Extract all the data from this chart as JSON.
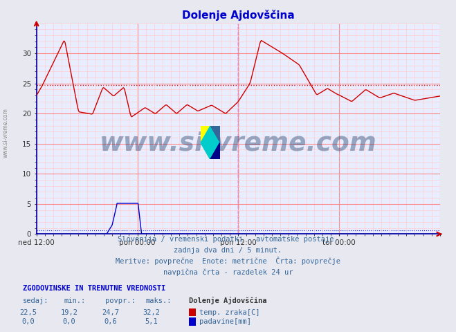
{
  "title": "Dolenje Ajdovščina",
  "title_color": "#0000cc",
  "bg_color": "#e8e8f0",
  "plot_bg_color": "#e8eeff",
  "grid_color_major": "#ffaaaa",
  "grid_color_minor": "#ffd0d0",
  "xlim": [
    0,
    576
  ],
  "ylim": [
    0,
    35
  ],
  "yticks": [
    0,
    5,
    10,
    15,
    20,
    25,
    30
  ],
  "xtick_labels": [
    "ned 12:00",
    "pon 00:00",
    "pon 12:00",
    "tor 00:00"
  ],
  "xtick_positions": [
    0,
    144,
    288,
    432
  ],
  "hline_red_y": 24.7,
  "hline_blue_y": 0.6,
  "vline_x": 288,
  "temp_color": "#cc0000",
  "precip_color": "#0000cc",
  "watermark_text": "www.si-vreme.com",
  "watermark_color": "#1a3a6a",
  "watermark_alpha": 0.4,
  "info_line1": "Slovenija / vremenski podatki - avtomatske postaje.",
  "info_line2": "zadnja dva dni / 5 minut.",
  "info_line3": "Meritve: povprečne  Enote: metrične  Črta: povprečje",
  "info_line4": "navpična črta - razdelek 24 ur",
  "table_header": "ZGODOVINSKE IN TRENUTNE VREDNOSTI",
  "col_headers": [
    "sedaj:",
    "min.:",
    "povpr.:",
    "maks.:"
  ],
  "station_name": "Dolenje Ajdovščina",
  "row1_values": [
    "22,5",
    "19,2",
    "24,7",
    "32,2"
  ],
  "row1_label": "temp. zraka[C]",
  "row1_color": "#cc0000",
  "row2_values": [
    "0,0",
    "0,0",
    "0,6",
    "5,1"
  ],
  "row2_label": "padavine[mm]",
  "row2_color": "#0000cc",
  "sidebar_text": "www.si-vreme.com"
}
